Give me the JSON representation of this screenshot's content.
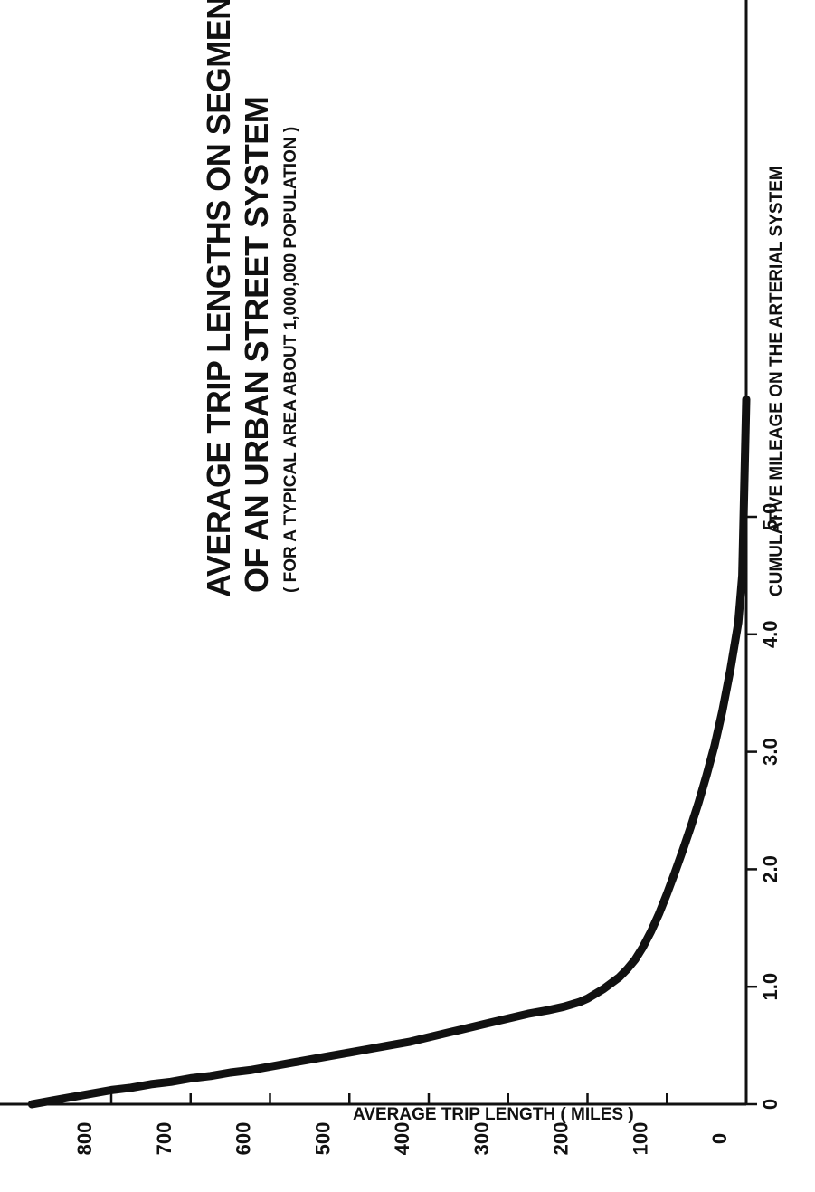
{
  "chart_data": {
    "type": "line",
    "title": "AVERAGE TRIP LENGTHS ON SEGMENTS",
    "title_line2": "OF AN URBAN STREET SYSTEM",
    "subtitle": "( FOR A TYPICAL AREA ABOUT 1,000,000 POPULATION )",
    "xlabel": "CUMULATIVE MILEAGE ON THE ARTERIAL SYSTEM",
    "ylabel": "AVERAGE TRIP LENGTH ( MILES )",
    "xlim": [
      0,
      900
    ],
    "ylim": [
      0,
      6.0
    ],
    "x_ticks": [
      0,
      100,
      200,
      300,
      400,
      500,
      600,
      700,
      800
    ],
    "x_tick_labels": [
      "0",
      "100",
      "200",
      "300",
      "400",
      "500",
      "600",
      "700",
      "800"
    ],
    "y_ticks": [
      0,
      1.0,
      2.0,
      3.0,
      4.0,
      5.0
    ],
    "y_tick_labels": [
      "0",
      "1.0",
      "2.0",
      "3.0",
      "4.0",
      "5.0"
    ],
    "grid": false,
    "series": [
      {
        "x": [
          0,
          5,
          10,
          20,
          30,
          40,
          50,
          60,
          70,
          80,
          90,
          100,
          110,
          120,
          130,
          140,
          150,
          160,
          170,
          180,
          190,
          200,
          210,
          220,
          230,
          250,
          275,
          300,
          325,
          350,
          375,
          400,
          425,
          450,
          475,
          500,
          525,
          550,
          575,
          600,
          625,
          650,
          675,
          700,
          725,
          750,
          775,
          800,
          825,
          850,
          875,
          900
        ],
        "y": [
          6.0,
          4.5,
          4.1,
          3.7,
          3.35,
          3.05,
          2.8,
          2.57,
          2.36,
          2.16,
          1.97,
          1.79,
          1.62,
          1.47,
          1.34,
          1.23,
          1.15,
          1.08,
          1.03,
          0.98,
          0.94,
          0.9,
          0.87,
          0.85,
          0.83,
          0.8,
          0.77,
          0.73,
          0.69,
          0.65,
          0.61,
          0.57,
          0.53,
          0.5,
          0.47,
          0.44,
          0.41,
          0.38,
          0.35,
          0.32,
          0.29,
          0.27,
          0.24,
          0.22,
          0.19,
          0.17,
          0.14,
          0.12,
          0.09,
          0.06,
          0.03,
          0.0
        ]
      }
    ]
  }
}
